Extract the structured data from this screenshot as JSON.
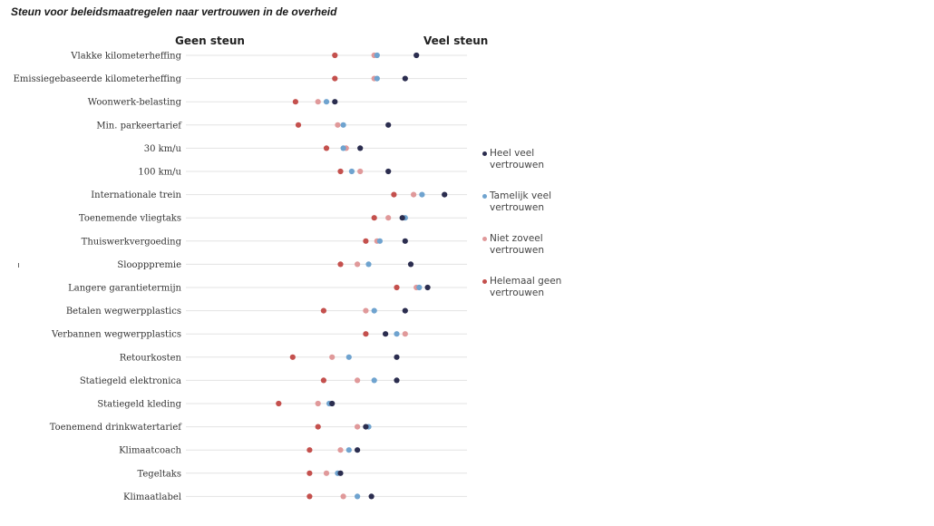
{
  "chart_data": {
    "type": "scatter",
    "title": "Steun voor beleidsmaatregelen naar vertrouwen in de overheid",
    "axis_left_label": "Geen steun",
    "axis_right_label": "Veel steun",
    "grid": true,
    "legend_position": "right",
    "categories": [
      "Vlakke kilometerheffing",
      "Emissiegebaseerde kilometerheffing",
      "Woonwerk-belasting",
      "Min. parkeertarief",
      "30 km/u",
      "100 km/u",
      "Internationale trein",
      "Toenemende vliegtaks",
      "Thuiswerkvergoeding",
      "Sloopppremie",
      "Langere garantietermijn",
      "Betalen wegwerpplastics",
      "Verbannen wegwerpplastics",
      "Retourkosten",
      "Statiegeld elektronica",
      "Statiegeld kleding",
      "Toenemend drinkwatertarief",
      "Klimaatcoach",
      "Tegeltaks",
      "Klimaatlabel"
    ],
    "series": [
      {
        "name": "Heel veel vertrouwen",
        "color": "#2b2d4f",
        "values": [
          0.82,
          0.78,
          0.53,
          0.72,
          0.62,
          0.72,
          0.92,
          0.77,
          0.78,
          0.8,
          0.86,
          0.78,
          0.71,
          0.75,
          0.75,
          0.52,
          0.64,
          0.61,
          0.55,
          0.66
        ]
      },
      {
        "name": "Tamelijk veel vertrouwen",
        "color": "#6fa3cf",
        "values": [
          0.68,
          0.68,
          0.5,
          0.56,
          0.56,
          0.59,
          0.84,
          0.78,
          0.69,
          0.65,
          0.83,
          0.67,
          0.75,
          0.58,
          0.67,
          0.51,
          0.65,
          0.58,
          0.54,
          0.61
        ]
      },
      {
        "name": "Niet zoveel vertrouwen",
        "color": "#e0999a",
        "values": [
          0.67,
          0.67,
          0.47,
          0.54,
          0.57,
          0.62,
          0.81,
          0.72,
          0.68,
          0.61,
          0.82,
          0.64,
          0.78,
          0.52,
          0.61,
          0.47,
          0.61,
          0.55,
          0.5,
          0.56
        ]
      },
      {
        "name": "Helemaal geen vertrouwen",
        "color": "#c4504d",
        "values": [
          0.53,
          0.53,
          0.39,
          0.4,
          0.5,
          0.55,
          0.74,
          0.67,
          0.64,
          0.55,
          0.75,
          0.49,
          0.64,
          0.38,
          0.49,
          0.33,
          0.47,
          0.44,
          0.44,
          0.44
        ]
      }
    ]
  }
}
